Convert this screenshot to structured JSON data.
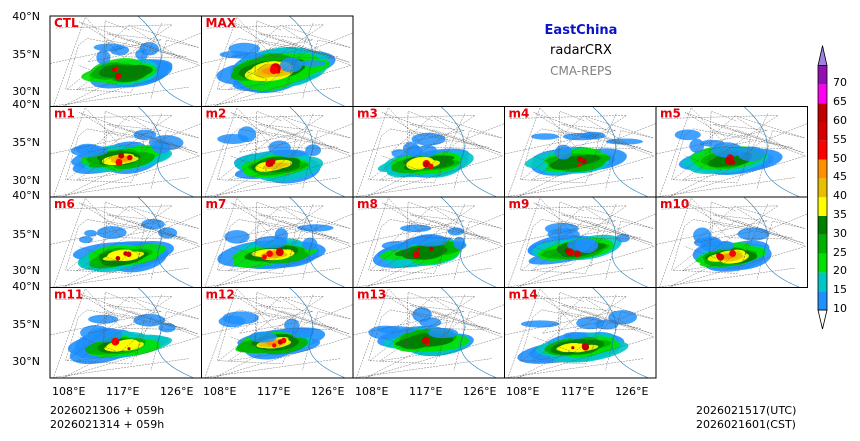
{
  "figure": {
    "region_title": "EastChina",
    "product": "radarCRX",
    "system": "CMA-REPS",
    "title_color": "#0b13c9",
    "subtitle_color": "#808080"
  },
  "panels": [
    {
      "label": "CTL",
      "row": 0,
      "col": 0
    },
    {
      "label": "MAX",
      "row": 0,
      "col": 1
    },
    {
      "label": "m1",
      "row": 1,
      "col": 0
    },
    {
      "label": "m2",
      "row": 1,
      "col": 1
    },
    {
      "label": "m3",
      "row": 1,
      "col": 2
    },
    {
      "label": "m4",
      "row": 1,
      "col": 3
    },
    {
      "label": "m5",
      "row": 1,
      "col": 4
    },
    {
      "label": "m6",
      "row": 2,
      "col": 0
    },
    {
      "label": "m7",
      "row": 2,
      "col": 1
    },
    {
      "label": "m8",
      "row": 2,
      "col": 2
    },
    {
      "label": "m9",
      "row": 2,
      "col": 3
    },
    {
      "label": "m10",
      "row": 2,
      "col": 4
    },
    {
      "label": "m11",
      "row": 3,
      "col": 0
    },
    {
      "label": "m12",
      "row": 3,
      "col": 1
    },
    {
      "label": "m13",
      "row": 3,
      "col": 2
    },
    {
      "label": "m14",
      "row": 3,
      "col": 3
    }
  ],
  "panel_label_color": "#e8000b",
  "axes": {
    "lat_ticks": [
      "40°N",
      "35°N",
      "30°N"
    ],
    "lon_ticks": [
      "108°E",
      "117°E",
      "126°E"
    ],
    "lat_range": [
      28,
      40
    ],
    "lon_range": [
      106,
      129
    ]
  },
  "colorbar": {
    "levels": [
      10,
      15,
      20,
      25,
      30,
      35,
      40,
      45,
      50,
      55,
      60,
      65,
      70
    ],
    "labels": [
      "10",
      "15",
      "20",
      "25",
      "30",
      "35",
      "40",
      "45",
      "50",
      "55",
      "60",
      "65",
      "70"
    ],
    "colors": [
      "#1e90ff",
      "#00c5c5",
      "#00e000",
      "#00b000",
      "#008000",
      "#ffff00",
      "#e6c000",
      "#ff9000",
      "#ff0000",
      "#d60000",
      "#c00000",
      "#ff00f0",
      "#9010b0",
      "#a080e0"
    ]
  },
  "footer": {
    "init_utc": "2026021306  +  059h",
    "init_cst": "2026021314  +  059h",
    "valid_utc": "2026021517(UTC)",
    "valid_cst": "2026021601(CST)"
  }
}
